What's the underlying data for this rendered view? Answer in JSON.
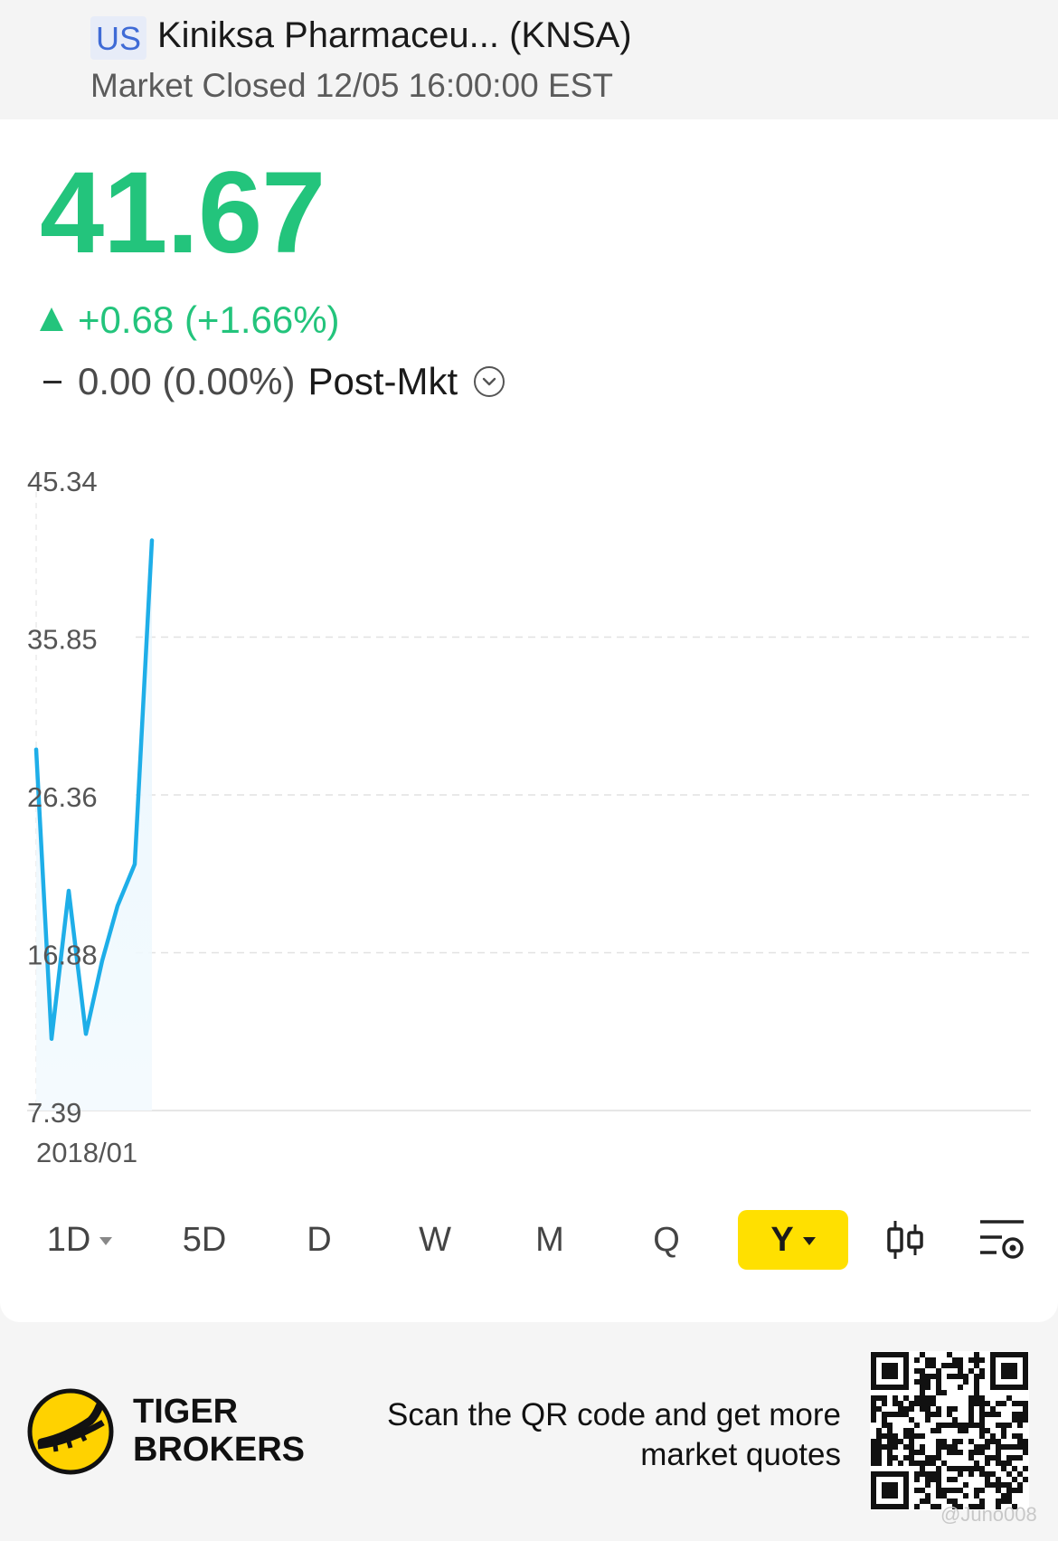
{
  "header": {
    "market_badge": "US",
    "stock_name": "Kiniksa Pharmaceu... (KNSA)",
    "market_status": "Market Closed 12/05 16:00:00 EST"
  },
  "quote": {
    "price": "41.67",
    "change": "+0.68 (+1.66%)",
    "post_market_value": "0.00 (0.00%)",
    "post_market_label": "Post-Mkt",
    "accent_green": "#23c47c"
  },
  "chart_data": {
    "type": "line",
    "yticks": [
      "45.34",
      "35.85",
      "26.36",
      "16.88",
      "7.39"
    ],
    "ylim": [
      7.39,
      45.34
    ],
    "xlabel_start": "2018/01",
    "line_color": "#1eaee8",
    "grid": true,
    "series": [
      {
        "values": [
          29.1,
          11.7,
          20.6,
          12.0,
          16.4,
          19.7,
          22.2,
          41.67
        ]
      }
    ]
  },
  "tabs": {
    "items": [
      {
        "label": "1D",
        "dropdown": true
      },
      {
        "label": "5D"
      },
      {
        "label": "D"
      },
      {
        "label": "W"
      },
      {
        "label": "M"
      },
      {
        "label": "Q"
      },
      {
        "label": "Y",
        "dropdown": true,
        "active": true
      }
    ],
    "active_color": "#ffe000",
    "tool_icons": [
      "candlestick-icon",
      "indicator-settings-icon"
    ]
  },
  "footer": {
    "brand_line1": "TIGER",
    "brand_line2": "BROKERS",
    "promo_line1": "Scan the QR code and get more",
    "promo_line2": "market quotes",
    "watermark": "@Juno008"
  }
}
